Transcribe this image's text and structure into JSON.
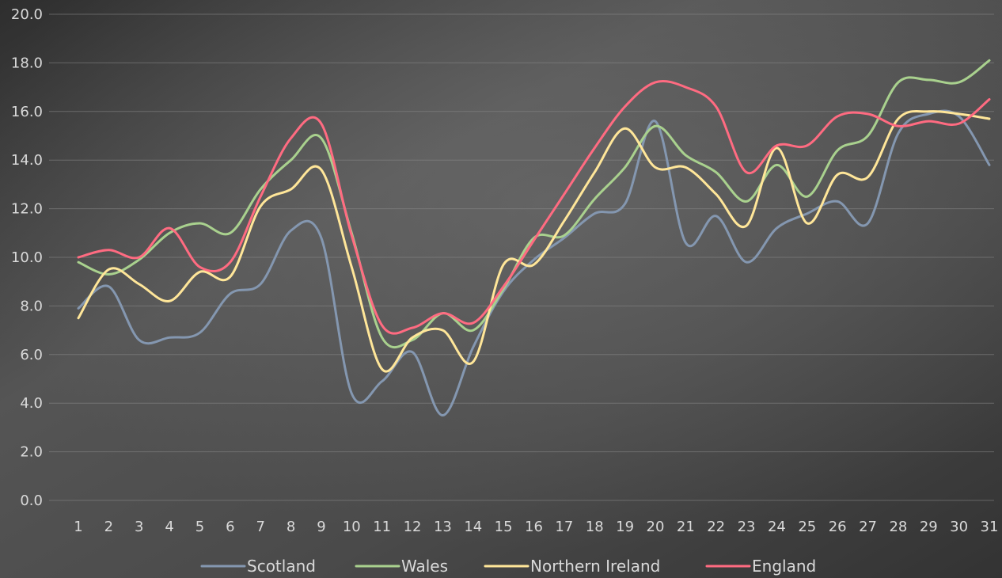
{
  "chart_data": {
    "type": "line",
    "title": "",
    "xlabel": "",
    "ylabel": "",
    "x": [
      1,
      2,
      3,
      4,
      5,
      6,
      7,
      8,
      9,
      10,
      11,
      12,
      13,
      14,
      15,
      16,
      17,
      18,
      19,
      20,
      21,
      22,
      23,
      24,
      25,
      26,
      27,
      28,
      29,
      30,
      31
    ],
    "ylim": [
      0,
      20
    ],
    "yticks": [
      "0.0",
      "2.0",
      "4.0",
      "6.0",
      "8.0",
      "10.0",
      "12.0",
      "14.0",
      "16.0",
      "18.0",
      "20.0"
    ],
    "grid": true,
    "legend": "bottom",
    "series": [
      {
        "name": "Scotland",
        "color": "#8497b0",
        "values": [
          7.9,
          8.8,
          6.6,
          6.7,
          6.9,
          8.5,
          8.9,
          11.1,
          10.8,
          4.4,
          4.9,
          6.1,
          3.5,
          6.3,
          8.6,
          9.9,
          10.8,
          11.8,
          12.2,
          15.6,
          10.6,
          11.7,
          9.8,
          11.2,
          11.8,
          12.3,
          11.4,
          15.1,
          15.9,
          15.8,
          13.8
        ]
      },
      {
        "name": "Wales",
        "color": "#a9d18e",
        "values": [
          9.8,
          9.3,
          9.9,
          11.0,
          11.4,
          11.0,
          12.8,
          14.0,
          14.9,
          11.0,
          6.7,
          6.6,
          7.7,
          7.0,
          8.7,
          10.8,
          10.9,
          12.4,
          13.7,
          15.4,
          14.2,
          13.5,
          12.3,
          13.8,
          12.5,
          14.4,
          15.0,
          17.2,
          17.3,
          17.2,
          18.1
        ]
      },
      {
        "name": "Northern Ireland",
        "color": "#ffe699",
        "values": [
          7.5,
          9.5,
          8.9,
          8.2,
          9.4,
          9.2,
          12.1,
          12.8,
          13.6,
          9.6,
          5.4,
          6.7,
          7.0,
          5.7,
          9.7,
          9.7,
          11.5,
          13.5,
          15.3,
          13.7,
          13.7,
          12.6,
          11.3,
          14.5,
          11.4,
          13.4,
          13.3,
          15.7,
          16.0,
          15.9,
          15.7
        ]
      },
      {
        "name": "England",
        "color": "#ff6b81",
        "values": [
          10.0,
          10.3,
          10.0,
          11.2,
          9.6,
          9.8,
          12.5,
          14.9,
          15.5,
          10.9,
          7.2,
          7.1,
          7.7,
          7.3,
          8.8,
          10.7,
          12.6,
          14.5,
          16.2,
          17.2,
          17.0,
          16.2,
          13.5,
          14.6,
          14.6,
          15.8,
          15.9,
          15.4,
          15.6,
          15.5,
          16.5
        ]
      }
    ]
  }
}
